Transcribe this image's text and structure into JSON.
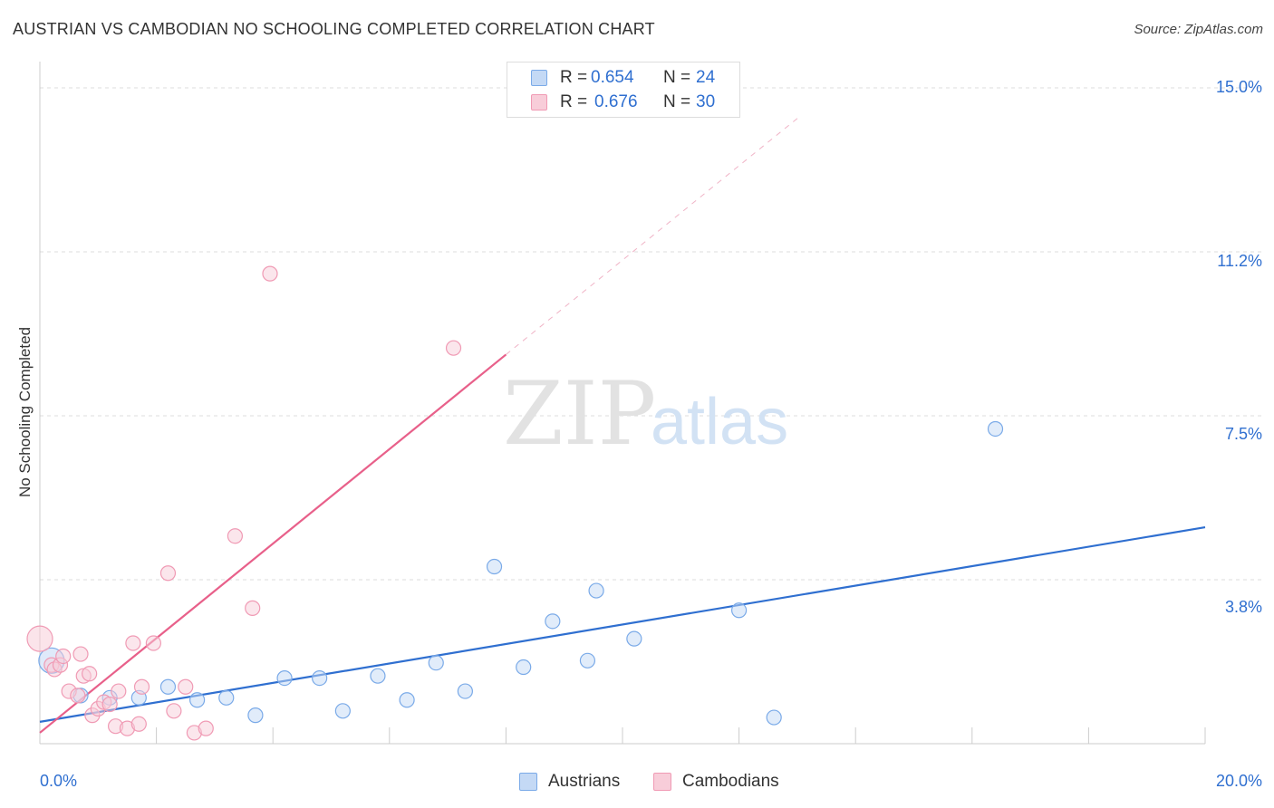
{
  "title": "AUSTRIAN VS CAMBODIAN NO SCHOOLING COMPLETED CORRELATION CHART",
  "source": "Source: ZipAtlas.com",
  "watermark": {
    "zip": "ZIP",
    "atlas": "atlas"
  },
  "chart_data": {
    "type": "scatter",
    "ylabel": "No Schooling Completed",
    "xlim": [
      0,
      20
    ],
    "ylim": [
      0,
      15
    ],
    "x_tick_labels": {
      "left": "0.0%",
      "right": "20.0%"
    },
    "y_ticks": [
      {
        "value": 15.0,
        "label": "15.0%"
      },
      {
        "value": 11.25,
        "label": "11.2%"
      },
      {
        "value": 7.5,
        "label": "7.5%"
      },
      {
        "value": 3.75,
        "label": "3.8%"
      }
    ],
    "grid": true,
    "legend_position": "top-center",
    "series": [
      {
        "name": "Austrians",
        "color": "#7aaae8",
        "fill": "#c4d9f5",
        "line_color": "#2f6fd0",
        "r_label": "R =",
        "r_value": "0.654",
        "n_label": "N =",
        "n_value": "24",
        "trend": {
          "x0": 0,
          "y0": 0.5,
          "x1": 20,
          "y1": 4.95
        },
        "points": [
          {
            "x": 0.2,
            "y": 1.9,
            "big": true
          },
          {
            "x": 0.7,
            "y": 1.1
          },
          {
            "x": 1.2,
            "y": 1.05
          },
          {
            "x": 1.7,
            "y": 1.05
          },
          {
            "x": 2.2,
            "y": 1.3
          },
          {
            "x": 2.7,
            "y": 1.0
          },
          {
            "x": 3.2,
            "y": 1.05
          },
          {
            "x": 3.7,
            "y": 0.65
          },
          {
            "x": 4.2,
            "y": 1.5
          },
          {
            "x": 4.8,
            "y": 1.5
          },
          {
            "x": 5.2,
            "y": 0.75
          },
          {
            "x": 5.8,
            "y": 1.55
          },
          {
            "x": 6.3,
            "y": 1.0
          },
          {
            "x": 6.8,
            "y": 1.85
          },
          {
            "x": 7.3,
            "y": 1.2
          },
          {
            "x": 7.8,
            "y": 4.05
          },
          {
            "x": 8.3,
            "y": 1.75
          },
          {
            "x": 8.8,
            "y": 2.8
          },
          {
            "x": 9.4,
            "y": 1.9
          },
          {
            "x": 9.55,
            "y": 3.5
          },
          {
            "x": 10.2,
            "y": 2.4
          },
          {
            "x": 12.0,
            "y": 3.05
          },
          {
            "x": 12.6,
            "y": 0.6
          },
          {
            "x": 16.4,
            "y": 7.2
          }
        ]
      },
      {
        "name": "Cambodians",
        "color": "#f09ab4",
        "fill": "#f8cdd9",
        "line_color": "#e8608a",
        "r_label": "R =",
        "r_value": "0.676",
        "n_label": "N =",
        "n_value": "30",
        "trend": {
          "x0": 0,
          "y0": 0.25,
          "x1": 8.0,
          "y1": 8.9
        },
        "trend_dashed": {
          "x0": 8.0,
          "y0": 8.9,
          "x1": 13.0,
          "y1": 14.3
        },
        "points": [
          {
            "x": 0.0,
            "y": 2.4,
            "big": true
          },
          {
            "x": 0.2,
            "y": 1.8
          },
          {
            "x": 0.25,
            "y": 1.7
          },
          {
            "x": 0.35,
            "y": 1.8
          },
          {
            "x": 0.4,
            "y": 2.0
          },
          {
            "x": 0.5,
            "y": 1.2
          },
          {
            "x": 0.65,
            "y": 1.1
          },
          {
            "x": 0.7,
            "y": 2.05
          },
          {
            "x": 0.75,
            "y": 1.55
          },
          {
            "x": 0.85,
            "y": 1.6
          },
          {
            "x": 0.9,
            "y": 0.65
          },
          {
            "x": 1.0,
            "y": 0.8
          },
          {
            "x": 1.1,
            "y": 0.95
          },
          {
            "x": 1.2,
            "y": 0.9
          },
          {
            "x": 1.3,
            "y": 0.4
          },
          {
            "x": 1.35,
            "y": 1.2
          },
          {
            "x": 1.5,
            "y": 0.35
          },
          {
            "x": 1.6,
            "y": 2.3
          },
          {
            "x": 1.7,
            "y": 0.45
          },
          {
            "x": 1.75,
            "y": 1.3
          },
          {
            "x": 1.95,
            "y": 2.3
          },
          {
            "x": 2.2,
            "y": 3.9
          },
          {
            "x": 2.3,
            "y": 0.75
          },
          {
            "x": 2.5,
            "y": 1.3
          },
          {
            "x": 2.65,
            "y": 0.25
          },
          {
            "x": 2.85,
            "y": 0.35
          },
          {
            "x": 3.35,
            "y": 4.75
          },
          {
            "x": 3.65,
            "y": 3.1
          },
          {
            "x": 3.95,
            "y": 10.75
          },
          {
            "x": 7.1,
            "y": 9.05
          }
        ]
      }
    ]
  }
}
